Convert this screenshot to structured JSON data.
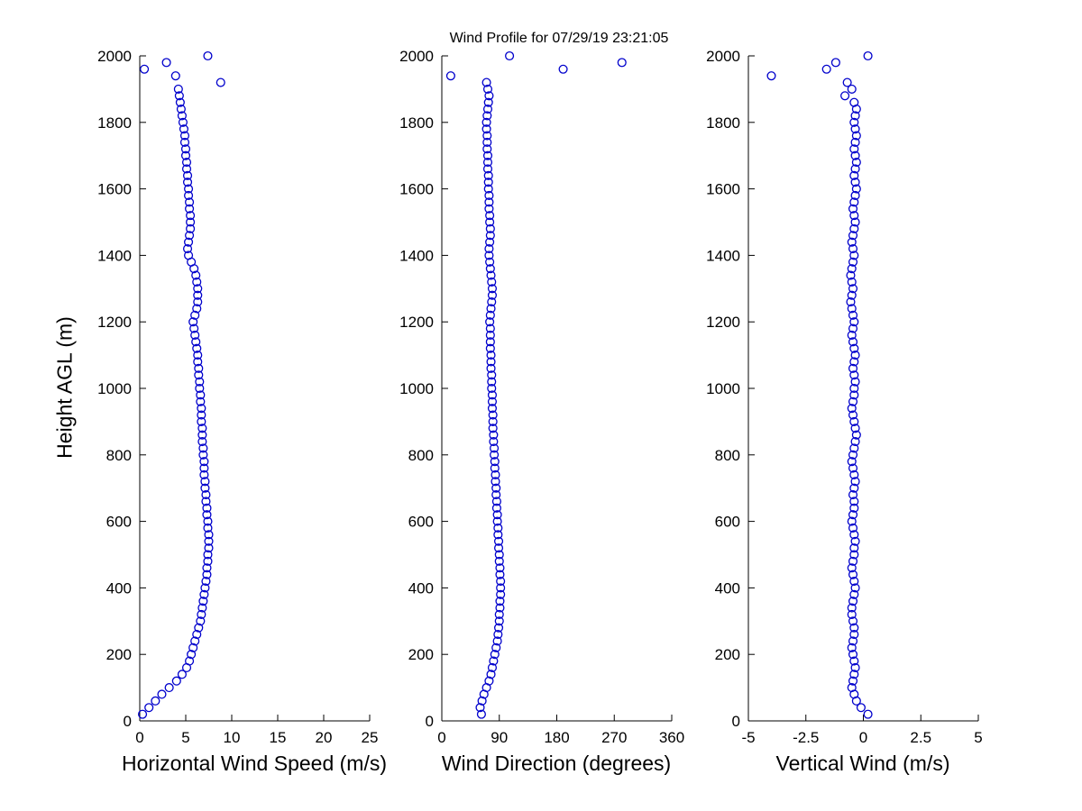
{
  "title": "Wind Profile for  07/29/19 23:21:05",
  "ylabel": "Height AGL (m)",
  "marker_color": "#0000cc",
  "heights": [
    20,
    40,
    60,
    80,
    100,
    120,
    140,
    160,
    180,
    200,
    220,
    240,
    260,
    280,
    300,
    320,
    340,
    360,
    380,
    400,
    420,
    440,
    460,
    480,
    500,
    520,
    540,
    560,
    580,
    600,
    620,
    640,
    660,
    680,
    700,
    720,
    740,
    760,
    780,
    800,
    820,
    840,
    860,
    880,
    900,
    920,
    940,
    960,
    980,
    1000,
    1020,
    1040,
    1060,
    1080,
    1100,
    1120,
    1140,
    1160,
    1180,
    1200,
    1220,
    1240,
    1260,
    1280,
    1300,
    1320,
    1340,
    1360,
    1380,
    1400,
    1420,
    1440,
    1460,
    1480,
    1500,
    1520,
    1540,
    1560,
    1580,
    1600,
    1620,
    1640,
    1660,
    1680,
    1700,
    1720,
    1740,
    1760,
    1780,
    1800,
    1820,
    1840,
    1860,
    1880,
    1900,
    1920,
    1940,
    1960,
    1980,
    2000
  ],
  "chart_data": [
    {
      "type": "scatter",
      "name": "horizontal-wind-speed",
      "xlabel": "Horizontal Wind Speed (m/s)",
      "xlim": [
        0,
        25
      ],
      "xticks": [
        0,
        5,
        10,
        15,
        20,
        25
      ],
      "ylim": [
        0,
        2000
      ],
      "yticks": [
        0,
        200,
        400,
        600,
        800,
        1000,
        1200,
        1400,
        1600,
        1800,
        2000
      ],
      "values": [
        0.3,
        1.0,
        1.7,
        2.4,
        3.2,
        4.0,
        4.6,
        5.1,
        5.4,
        5.6,
        5.8,
        6.0,
        6.2,
        6.4,
        6.6,
        6.7,
        6.8,
        6.9,
        7.0,
        7.1,
        7.2,
        7.3,
        7.3,
        7.4,
        7.4,
        7.5,
        7.5,
        7.5,
        7.4,
        7.4,
        7.3,
        7.3,
        7.2,
        7.2,
        7.1,
        7.1,
        7.0,
        7.0,
        7.0,
        6.9,
        6.9,
        6.8,
        6.8,
        6.8,
        6.7,
        6.7,
        6.7,
        6.6,
        6.6,
        6.5,
        6.5,
        6.4,
        6.4,
        6.3,
        6.3,
        6.2,
        6.1,
        6.0,
        5.9,
        5.8,
        6.0,
        6.2,
        6.3,
        6.3,
        6.3,
        6.2,
        6.1,
        5.9,
        5.6,
        5.3,
        5.2,
        5.3,
        5.4,
        5.5,
        5.5,
        5.5,
        5.4,
        5.4,
        5.3,
        5.3,
        5.2,
        5.2,
        5.1,
        5.1,
        5.0,
        5.0,
        4.9,
        4.9,
        4.8,
        4.7,
        4.6,
        4.5,
        4.4,
        4.3,
        4.2,
        8.8,
        3.9,
        0.5,
        2.9,
        7.4
      ]
    },
    {
      "type": "scatter",
      "name": "wind-direction",
      "xlabel": "Wind Direction (degrees)",
      "xlim": [
        0,
        360
      ],
      "xticks": [
        0,
        90,
        180,
        270,
        360
      ],
      "ylim": [
        0,
        2000
      ],
      "yticks": [
        0,
        200,
        400,
        600,
        800,
        1000,
        1200,
        1400,
        1600,
        1800,
        2000
      ],
      "values": [
        62,
        60,
        63,
        66,
        70,
        74,
        77,
        79,
        81,
        83,
        85,
        87,
        88,
        89,
        90,
        90,
        91,
        91,
        92,
        92,
        92,
        91,
        91,
        90,
        90,
        89,
        89,
        88,
        88,
        87,
        87,
        86,
        86,
        85,
        85,
        84,
        84,
        83,
        83,
        82,
        82,
        81,
        81,
        80,
        80,
        80,
        79,
        79,
        79,
        78,
        78,
        78,
        77,
        77,
        77,
        76,
        76,
        76,
        76,
        75,
        76,
        77,
        78,
        79,
        79,
        78,
        77,
        76,
        75,
        74,
        74,
        75,
        76,
        76,
        75,
        75,
        74,
        74,
        74,
        73,
        73,
        73,
        72,
        72,
        72,
        71,
        71,
        71,
        70,
        70,
        71,
        72,
        73,
        74,
        72,
        70,
        14,
        190,
        282,
        106
      ]
    },
    {
      "type": "scatter",
      "name": "vertical-wind",
      "xlabel": "Vertical Wind (m/s)",
      "xlim": [
        -5,
        5
      ],
      "xticks": [
        -5,
        -2.5,
        0,
        2.5,
        5
      ],
      "ylim": [
        0,
        2000
      ],
      "yticks": [
        0,
        200,
        400,
        600,
        800,
        1000,
        1200,
        1400,
        1600,
        1800,
        2000
      ],
      "values": [
        0.2,
        -0.1,
        -0.3,
        -0.4,
        -0.5,
        -0.45,
        -0.4,
        -0.35,
        -0.4,
        -0.45,
        -0.5,
        -0.45,
        -0.4,
        -0.4,
        -0.45,
        -0.5,
        -0.5,
        -0.45,
        -0.4,
        -0.35,
        -0.4,
        -0.45,
        -0.5,
        -0.45,
        -0.4,
        -0.4,
        -0.35,
        -0.4,
        -0.45,
        -0.5,
        -0.45,
        -0.4,
        -0.4,
        -0.45,
        -0.4,
        -0.35,
        -0.4,
        -0.45,
        -0.5,
        -0.45,
        -0.4,
        -0.35,
        -0.3,
        -0.35,
        -0.4,
        -0.45,
        -0.5,
        -0.45,
        -0.4,
        -0.4,
        -0.35,
        -0.4,
        -0.45,
        -0.4,
        -0.35,
        -0.4,
        -0.45,
        -0.5,
        -0.45,
        -0.4,
        -0.45,
        -0.5,
        -0.55,
        -0.5,
        -0.45,
        -0.5,
        -0.55,
        -0.5,
        -0.45,
        -0.4,
        -0.45,
        -0.5,
        -0.45,
        -0.4,
        -0.35,
        -0.4,
        -0.45,
        -0.4,
        -0.35,
        -0.3,
        -0.35,
        -0.4,
        -0.35,
        -0.3,
        -0.35,
        -0.4,
        -0.35,
        -0.3,
        -0.35,
        -0.4,
        -0.35,
        -0.3,
        -0.4,
        -0.8,
        -0.5,
        -0.7,
        -4.0,
        -1.6,
        -1.2,
        0.2
      ]
    }
  ]
}
